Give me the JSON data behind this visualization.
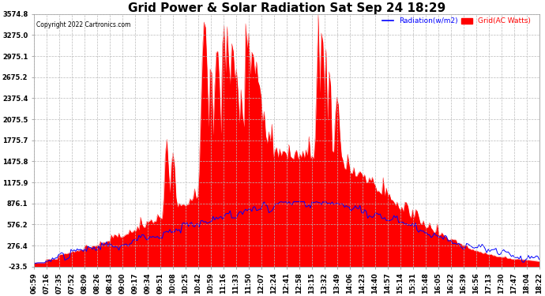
{
  "title": "Grid Power & Solar Radiation Sat Sep 24 18:29",
  "copyright": "Copyright 2022 Cartronics.com",
  "legend_radiation": "Radiation(w/m2)",
  "legend_grid": "Grid(AC Watts)",
  "legend_radiation_color": "blue",
  "legend_grid_color": "red",
  "ylabel_values": [
    3574.8,
    3275.0,
    2975.1,
    2675.2,
    2375.4,
    2075.5,
    1775.7,
    1475.8,
    1175.9,
    876.1,
    576.2,
    276.4,
    -23.5
  ],
  "ylim": [
    -23.5,
    3574.8
  ],
  "background_color": "#ffffff",
  "grid_color": "#bbbbbb",
  "title_fontsize": 11,
  "tick_fontsize": 6.0,
  "time_labels": [
    "06:59",
    "07:16",
    "07:35",
    "07:52",
    "08:09",
    "08:26",
    "08:43",
    "09:00",
    "09:17",
    "09:34",
    "09:51",
    "10:08",
    "10:25",
    "10:42",
    "10:59",
    "11:16",
    "11:33",
    "11:50",
    "12:07",
    "12:24",
    "12:41",
    "12:58",
    "13:15",
    "13:32",
    "13:49",
    "14:06",
    "14:23",
    "14:40",
    "14:57",
    "15:14",
    "15:31",
    "15:48",
    "16:05",
    "16:22",
    "16:39",
    "16:56",
    "17:13",
    "17:30",
    "17:47",
    "18:04",
    "18:22"
  ]
}
